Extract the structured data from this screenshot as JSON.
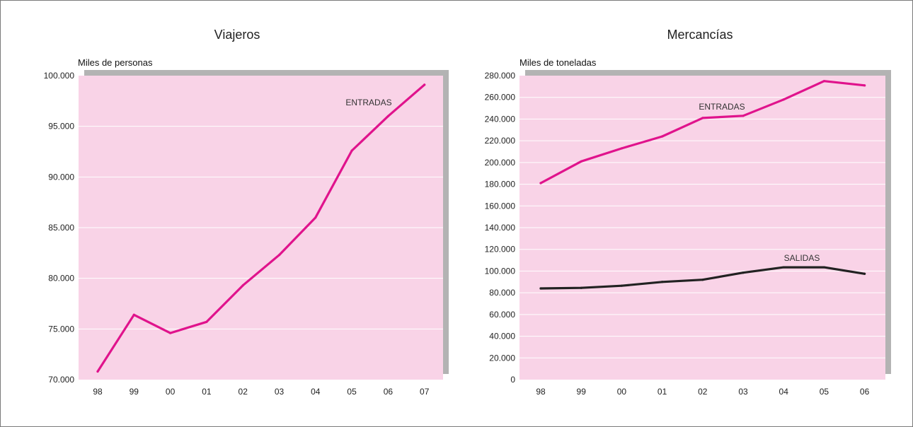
{
  "chart_data": [
    {
      "type": "line",
      "title": "Viajeros",
      "ylabel": "Miles de personas",
      "categories": [
        "98",
        "99",
        "00",
        "01",
        "02",
        "03",
        "04",
        "05",
        "06",
        "07"
      ],
      "y_ticks": [
        "70.000",
        "75.000",
        "80.000",
        "85.000",
        "90.000",
        "95.000",
        "100.000"
      ],
      "ylim": [
        70000,
        100000
      ],
      "grid": true,
      "series": [
        {
          "name": "ENTRADAS",
          "color": "#e0138c",
          "values": [
            70800,
            76400,
            74600,
            75700,
            79300,
            82300,
            86000,
            92600,
            96000,
            99100
          ]
        }
      ]
    },
    {
      "type": "line",
      "title": "Mercancías",
      "ylabel": "Miles de toneladas",
      "categories": [
        "98",
        "99",
        "00",
        "01",
        "02",
        "03",
        "04",
        "05",
        "06"
      ],
      "y_ticks": [
        "0",
        "20.000",
        "40.000",
        "60.000",
        "80.000",
        "100.000",
        "120.000",
        "140.000",
        "160.000",
        "180.000",
        "200.000",
        "220.000",
        "240.000",
        "260.000",
        "280.000"
      ],
      "ylim": [
        0,
        280000
      ],
      "grid": true,
      "series": [
        {
          "name": "ENTRADAS",
          "color": "#e0138c",
          "values": [
            181000,
            201000,
            213000,
            224000,
            241000,
            243000,
            258000,
            275000,
            271000
          ]
        },
        {
          "name": "SALIDAS",
          "color": "#222222",
          "values": [
            84000,
            84500,
            86500,
            90000,
            92000,
            98500,
            103500,
            103500,
            97500
          ]
        }
      ]
    }
  ],
  "colors": {
    "plot_bg": "#f9d3e7",
    "shadow": "#b3b3b3",
    "grid": "#ffffff"
  }
}
